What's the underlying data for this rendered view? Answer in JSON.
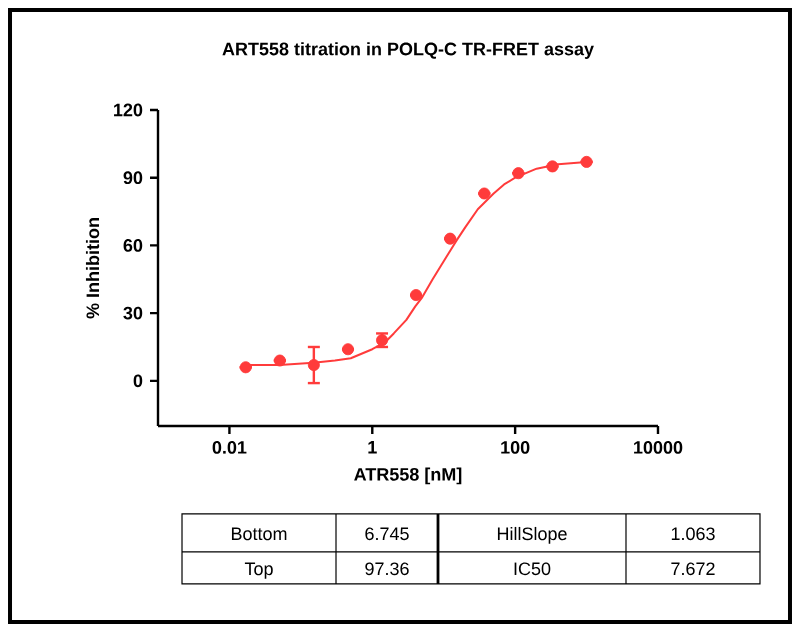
{
  "chart_data": {
    "type": "scatter",
    "title": "ART558 titration in POLQ-C TR-FRET assay",
    "xlabel": "ATR558 [nM]",
    "ylabel": "% Inhibition",
    "log": "x",
    "xlim": [
      0.001,
      10000
    ],
    "xticks": [
      0.01,
      1,
      100,
      10000
    ],
    "ylim": [
      -20,
      120
    ],
    "yticks": [
      0,
      30,
      60,
      90,
      120
    ],
    "grid": false,
    "x": [
      0.0169,
      0.0508,
      0.152,
      0.457,
      1.37,
      4.1,
      12.3,
      37,
      111,
      333,
      1000
    ],
    "series": [
      {
        "color": "#ff3b3b",
        "marker": "circle",
        "values": [
          6,
          9,
          7,
          14,
          18,
          38,
          63,
          83,
          92,
          95,
          97
        ],
        "errors": [
          null,
          null,
          8,
          null,
          3,
          null,
          null,
          null,
          null,
          null,
          null
        ]
      },
      {
        "type": "line",
        "color": "#ff3b3b",
        "marker": "none",
        "line_style": "solid",
        "x": [
          0.0169,
          0.05,
          0.15,
          0.3,
          0.5,
          1,
          1.5,
          2,
          3,
          4,
          5,
          7,
          10,
          15,
          20,
          30,
          50,
          70,
          100,
          200,
          400,
          1000
        ],
        "values": [
          7,
          7,
          8,
          9,
          10,
          14,
          17,
          21,
          27,
          33,
          37,
          45,
          53,
          62,
          68,
          76,
          83,
          87,
          90,
          94,
          96,
          97
        ]
      }
    ],
    "annotations": [
      "Bottom",
      "6.745",
      "HillSlope",
      "1.063",
      "Top",
      "97.36",
      "IC50",
      "7.672"
    ]
  }
}
